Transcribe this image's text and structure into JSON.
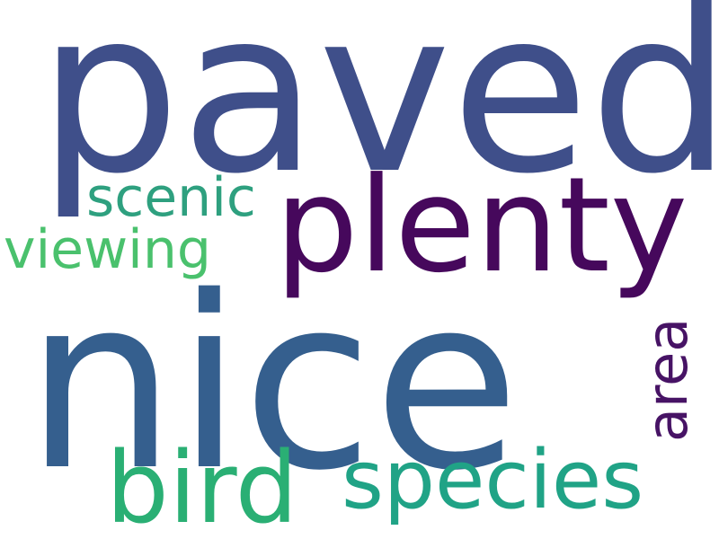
{
  "words": [
    {
      "text": "paved",
      "color": "#3f4f8a",
      "rotated": false
    },
    {
      "text": "plenty",
      "color": "#46085c",
      "rotated": false
    },
    {
      "text": "nice",
      "color": "#355f8e",
      "rotated": false
    },
    {
      "text": "scenic",
      "color": "#2ea07f",
      "rotated": false
    },
    {
      "text": "viewing",
      "color": "#4ac16d",
      "rotated": false
    },
    {
      "text": "bird",
      "color": "#2aaf74",
      "rotated": false
    },
    {
      "text": "species",
      "color": "#20a386",
      "rotated": false
    },
    {
      "text": "area",
      "color": "#471365",
      "rotated": true
    }
  ]
}
